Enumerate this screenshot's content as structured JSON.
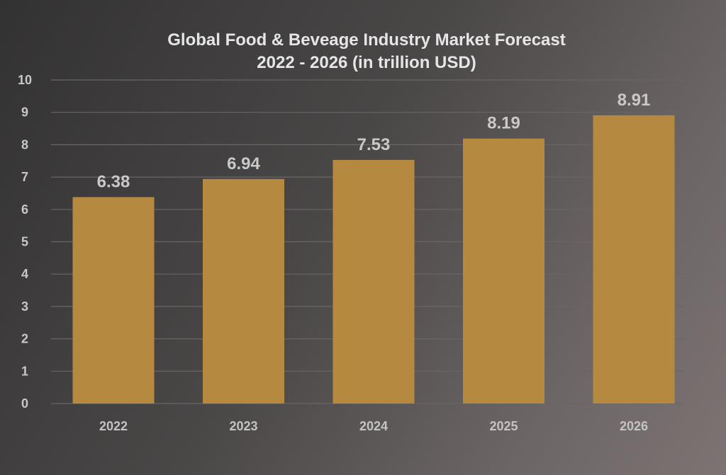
{
  "chart_data": {
    "type": "bar",
    "title": "Global Food & Beveage Industry Market Forecast",
    "subtitle": "2022 - 2026 (in trillion USD)",
    "xlabel": "",
    "ylabel": "",
    "categories": [
      "2022",
      "2023",
      "2024",
      "2025",
      "2026"
    ],
    "values": [
      6.38,
      6.94,
      7.53,
      8.19,
      8.91
    ],
    "data_labels": [
      "6.38",
      "6.94",
      "7.53",
      "8.19",
      "8.91"
    ],
    "ylim": [
      0,
      10
    ],
    "yticks": [
      "0",
      "1",
      "2",
      "3",
      "4",
      "5",
      "6",
      "7",
      "8",
      "9",
      "10"
    ],
    "grid": true,
    "legend": "none",
    "colors": {
      "bar": "#b5893f",
      "grid": "#6a6666",
      "text": "#c8c8c8"
    }
  }
}
